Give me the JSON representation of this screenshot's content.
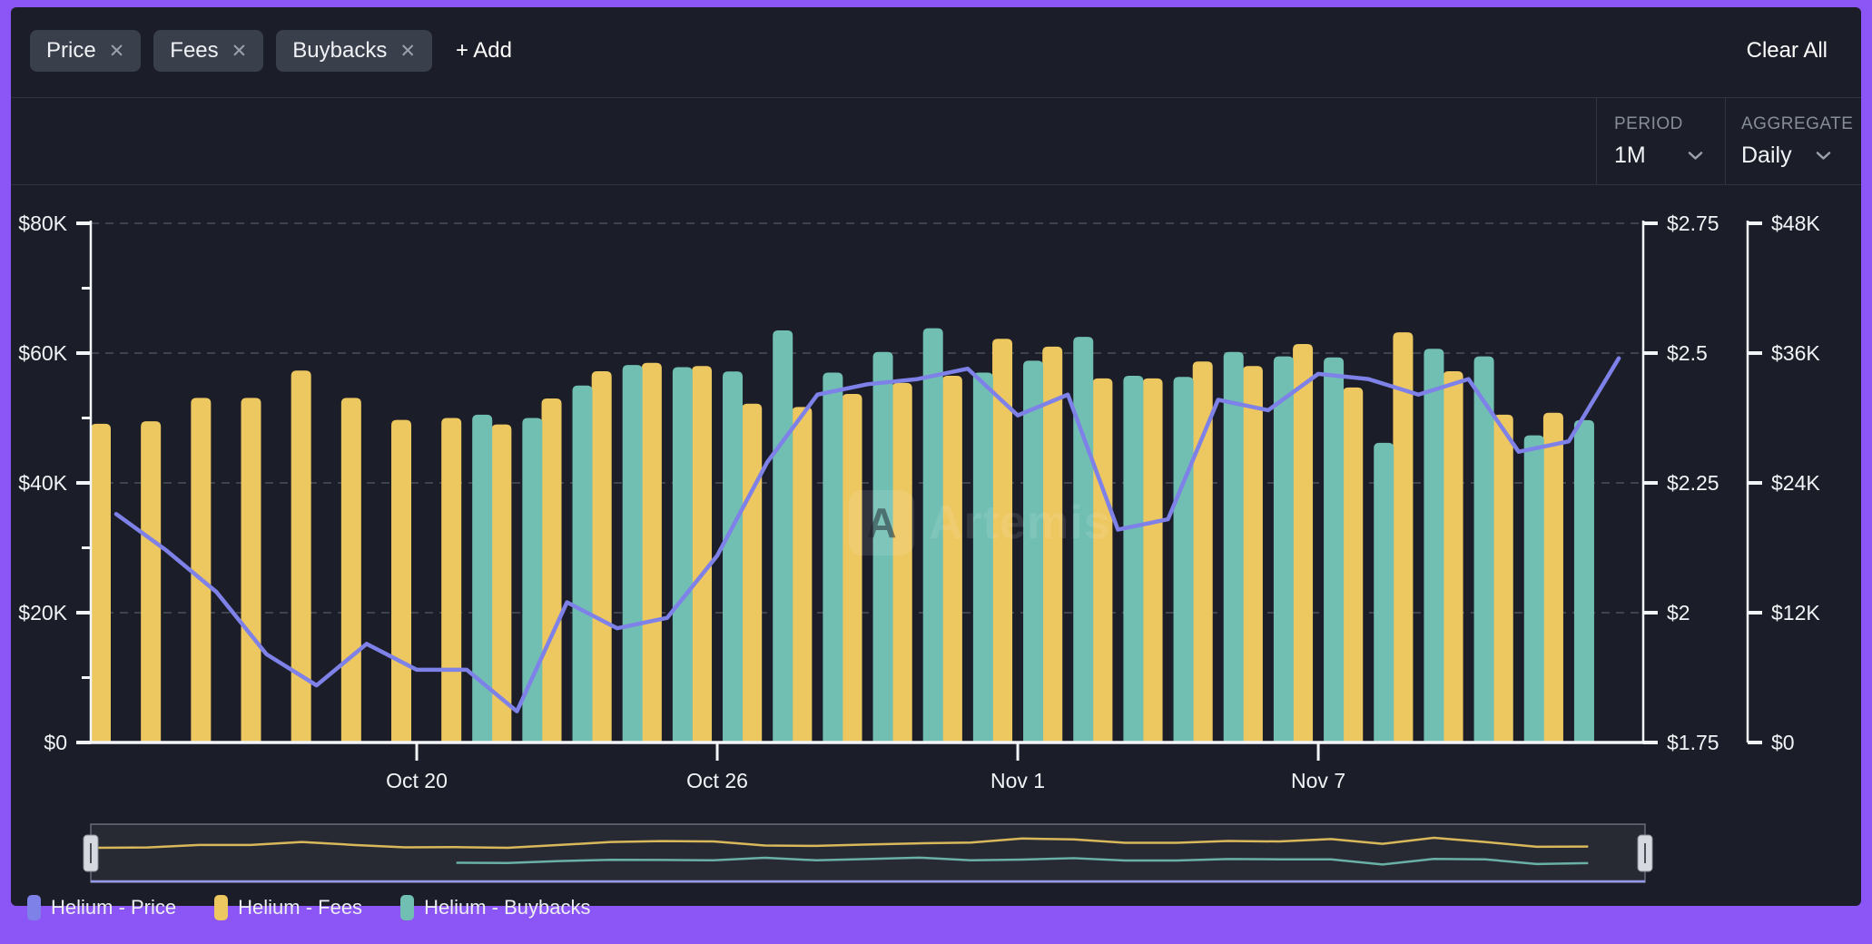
{
  "filters": {
    "chips": [
      {
        "label": "Price"
      },
      {
        "label": "Fees"
      },
      {
        "label": "Buybacks"
      }
    ],
    "add_label": "+ Add",
    "clear_all_label": "Clear All"
  },
  "icons": {
    "close": "✕"
  },
  "controls": {
    "period": {
      "label": "PERIOD",
      "value": "1M"
    },
    "aggregate": {
      "label": "AGGREGATE",
      "value": "Daily"
    }
  },
  "watermark": "Artemis",
  "colors": {
    "frame_accent": "#8c55f6",
    "panel_bg": "#1b1e28",
    "chip_bg": "#3a3f4c",
    "price_line": "#7e81e8",
    "fees_bar": "#edc75f",
    "buybacks_bar": "#71bfb3",
    "axis_text": "#f2f4f7",
    "muted_text": "#868c98",
    "gridline": "#6a7078"
  },
  "legend": [
    {
      "label": "Helium - Price",
      "color": "#7e81e8"
    },
    {
      "label": "Helium - Fees",
      "color": "#edc75f"
    },
    {
      "label": "Helium - Buybacks",
      "color": "#71bfb3"
    }
  ],
  "chart_data": {
    "type": "bar",
    "subtype": "grouped-bars-with-line",
    "x": [
      "Oct 14",
      "Oct 15",
      "Oct 16",
      "Oct 17",
      "Oct 18",
      "Oct 19",
      "Oct 20",
      "Oct 21",
      "Oct 22",
      "Oct 23",
      "Oct 24",
      "Oct 25",
      "Oct 26",
      "Oct 27",
      "Oct 28",
      "Oct 29",
      "Oct 30",
      "Oct 31",
      "Nov 1",
      "Nov 2",
      "Nov 3",
      "Nov 4",
      "Nov 5",
      "Nov 6",
      "Nov 7",
      "Nov 8",
      "Nov 9",
      "Nov 10",
      "Nov 11",
      "Nov 12",
      "Nov 13"
    ],
    "x_tick_labels": [
      "Oct 20",
      "Oct 26",
      "Nov 1",
      "Nov 7"
    ],
    "series": [
      {
        "name": "Helium - Price",
        "type": "line",
        "axis": "price",
        "color": "#7e81e8",
        "values": [
          2.19,
          2.12,
          2.04,
          1.92,
          1.86,
          1.94,
          1.89,
          1.89,
          1.81,
          2.02,
          1.97,
          1.99,
          2.11,
          2.29,
          2.42,
          2.44,
          2.45,
          2.47,
          2.38,
          2.42,
          2.16,
          2.18,
          2.41,
          2.39,
          2.46,
          2.45,
          2.42,
          2.45,
          2.31,
          2.33,
          2.49
        ]
      },
      {
        "name": "Helium - Fees",
        "type": "bar",
        "axis": "usd_left",
        "color": "#edc75f",
        "values": [
          49100,
          49500,
          53100,
          53100,
          57300,
          53100,
          49700,
          50000,
          49000,
          53000,
          57200,
          58500,
          58000,
          52200,
          51700,
          53700,
          55400,
          56500,
          62200,
          61000,
          56100,
          56100,
          58700,
          58000,
          61400,
          54700,
          63200,
          57200,
          50500,
          50800,
          null
        ]
      },
      {
        "name": "Helium - Buybacks",
        "type": "bar",
        "axis": "usd_right",
        "color": "#71bfb3",
        "values": [
          null,
          null,
          null,
          null,
          null,
          null,
          null,
          30300,
          30000,
          33000,
          34900,
          34700,
          34300,
          38100,
          34200,
          36100,
          38300,
          34200,
          35300,
          37500,
          33900,
          33800,
          36100,
          35700,
          35600,
          27700,
          36400,
          35700,
          28400,
          29800,
          null
        ]
      }
    ],
    "axes": {
      "usd_left": {
        "side": "left",
        "min": 0,
        "max": 80000,
        "ticks": [
          "$80K",
          "$60K",
          "$40K",
          "$20K",
          "$0"
        ]
      },
      "price": {
        "side": "right",
        "min": 1.75,
        "max": 2.75,
        "ticks": [
          "$2.75",
          "$2.5",
          "$2.25",
          "$2",
          "$1.75"
        ]
      },
      "usd_right": {
        "side": "right-outer",
        "min": 0,
        "max": 48000,
        "ticks": [
          "$48K",
          "$36K",
          "$24K",
          "$12K",
          "$0"
        ]
      }
    },
    "grid": "dashed-horizontal-major",
    "legend_position": "bottom-left",
    "navigator": {
      "present": true,
      "selected_range": "full"
    }
  }
}
